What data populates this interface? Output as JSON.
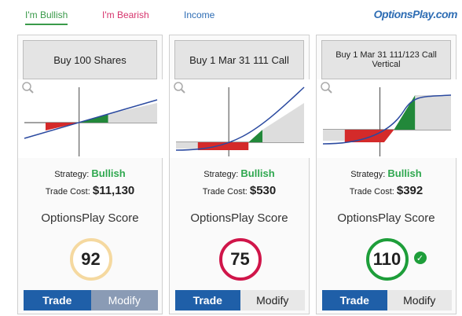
{
  "tabs": [
    {
      "label": "I'm Bullish",
      "color": "#3a9a4a",
      "active": true
    },
    {
      "label": "I'm Bearish",
      "color": "#d6336c",
      "active": false
    },
    {
      "label": "Income",
      "color": "#2e6db4",
      "active": false
    }
  ],
  "logo": "OptionsPlay.com",
  "cards": [
    {
      "title": "Buy 100 Shares",
      "strategy_label": "Strategy:",
      "strategy": "Bullish",
      "cost_label": "Trade Cost:",
      "cost": "$11,130",
      "score_label": "OptionsPlay Score",
      "score": 92,
      "score_color": "#f5d9a0",
      "check": false,
      "buttons": [
        "Trade",
        "Modify"
      ]
    },
    {
      "title": "Buy 1 Mar 31 111 Call",
      "strategy_label": "Strategy:",
      "strategy": "Bullish",
      "cost_label": "Trade Cost:",
      "cost": "$530",
      "score_label": "OptionsPlay Score",
      "score": 75,
      "score_color": "#d0164a",
      "check": false,
      "buttons": [
        "Trade",
        "Modify"
      ]
    },
    {
      "title": "Buy 1 Mar 31 111/123 Call Vertical",
      "strategy_label": "Strategy:",
      "strategy": "Bullish",
      "cost_label": "Trade Cost:",
      "cost": "$392",
      "score_label": "OptionsPlay Score",
      "score": 110,
      "score_color": "#1e9e3a",
      "check": true,
      "buttons": [
        "Trade",
        "Modify"
      ]
    }
  ]
}
